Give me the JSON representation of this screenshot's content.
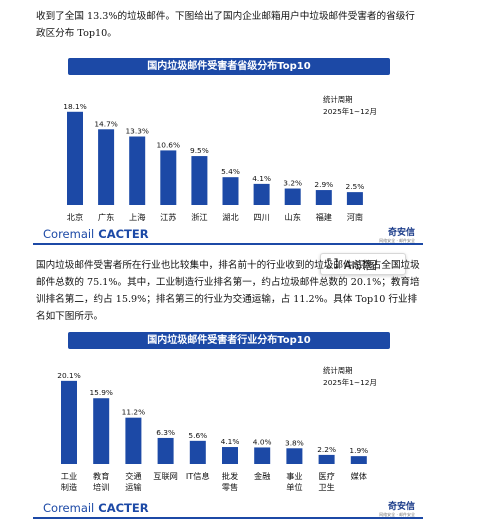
{
  "intro_text": "收到了全国 13.3%的垃圾邮件。下图给出了国内企业邮箱用户中垃圾邮件受害者的省级行政区分布 Top10。",
  "chart1": {
    "title_bar": "国内垃圾邮件受害者省级分布Top10",
    "period_label": "统计周期",
    "period_value": "2025年1~12月"
  },
  "chart2": {
    "title_bar": "国内垃圾邮件受害者行业分布Top10",
    "period_label": "统计周期",
    "period_value": "2025年1~12月"
  },
  "body_text": "国内垃圾邮件受害者所在行业也比较集中，排名前十的行业收到的垃圾邮件总数占全国垃圾邮件总数的 75.1%。其中，工业制造行业排名第一，约占垃圾邮件总数的 20.1%；教育培训排名第二，约占 15.9%；排名第三的行业为交通运输，占 11.2%。具体 Top10 行业排名如下图所示。",
  "footer": {
    "brand_coremail": "Coremail",
    "brand_cacter": "CACTER",
    "brand_qianxin": "奇安信",
    "brand_qianxin_sub": "网络安全 · 邮件安全"
  },
  "ai_button": {
    "label": "AI识图"
  },
  "colors": {
    "bar": "#1c49a6",
    "title_bar": "#1c49a6"
  },
  "chart_data": [
    {
      "type": "bar",
      "title": "国内垃圾邮件受害者省级分布Top10",
      "categories": [
        "北京",
        "广东",
        "上海",
        "江苏",
        "浙江",
        "湖北",
        "四川",
        "山东",
        "福建",
        "河南"
      ],
      "values": [
        18.1,
        14.7,
        13.3,
        10.6,
        9.5,
        5.4,
        4.1,
        3.2,
        2.9,
        2.5
      ],
      "labels": [
        "18.1%",
        "14.7%",
        "13.3%",
        "10.6%",
        "9.5%",
        "5.4%",
        "4.1%",
        "3.2%",
        "2.9%",
        "2.5%"
      ],
      "ylim": [
        0,
        20
      ],
      "grid": false
    },
    {
      "type": "bar",
      "title": "国内垃圾邮件受害者行业分布Top10",
      "categories": [
        "工业\n制造",
        "教育\n培训",
        "交通\n运输",
        "互联网",
        "IT信息",
        "批发\n零售",
        "金融",
        "事业\n单位",
        "医疗\n卫生",
        "媒体"
      ],
      "values": [
        20.1,
        15.9,
        11.2,
        6.3,
        5.6,
        4.1,
        4.0,
        3.8,
        2.2,
        1.9
      ],
      "labels": [
        "20.1%",
        "15.9%",
        "11.2%",
        "6.3%",
        "5.6%",
        "4.1%",
        "4.0%",
        "3.8%",
        "2.2%",
        "1.9%"
      ],
      "ylim": [
        0,
        22
      ],
      "grid": false
    }
  ]
}
